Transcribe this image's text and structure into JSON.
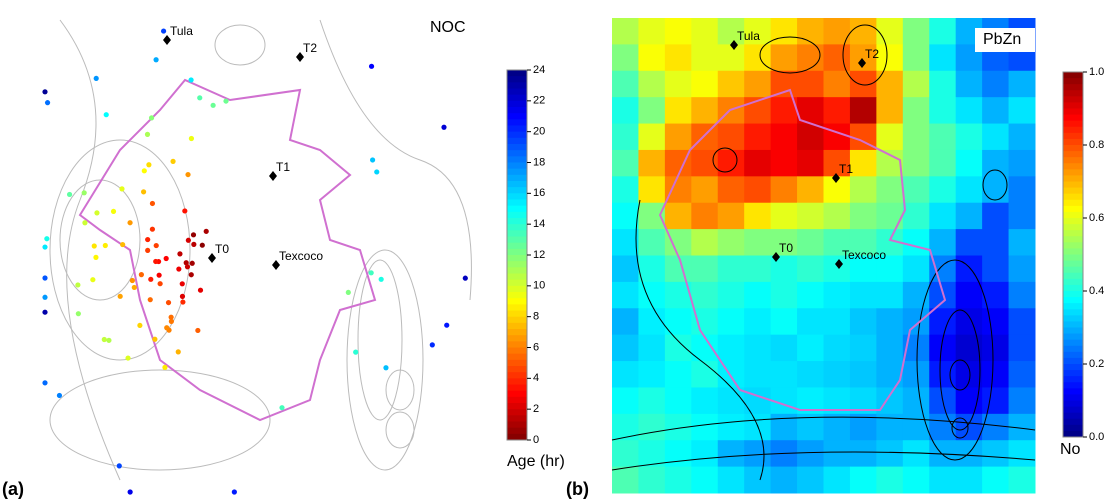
{
  "panels": [
    {
      "label": "(a)",
      "title": "NOC",
      "sites": [
        "Tula",
        "T2",
        "T1",
        "T0",
        "Texcoco"
      ],
      "colorbar": {
        "label": "Age (hr)",
        "lim": [
          0,
          24
        ],
        "ticks": [
          0,
          2,
          4,
          6,
          8,
          10,
          12,
          14,
          16,
          18,
          20,
          22,
          24
        ]
      },
      "ages": [
        0.5,
        1,
        1.2,
        1.5,
        2,
        2.2,
        2.5,
        3,
        3.2,
        3.5,
        1,
        0.8,
        2.8,
        3.8,
        4,
        4.2,
        4.5,
        5,
        5.2,
        5.5,
        6,
        6.2,
        6.5,
        7,
        7.2,
        7.5,
        8,
        8.2,
        8.5,
        9,
        9.2,
        9.5,
        10,
        10.2,
        10.5,
        11,
        11.5,
        12,
        12.5,
        13,
        4.8,
        5.8,
        6.8,
        7.8,
        8.8,
        9.8,
        10.8,
        11.8,
        12.8,
        13.5,
        14,
        14.5,
        15,
        15.5,
        16,
        16.5,
        17,
        17.5,
        18,
        18.5,
        19,
        19.5,
        20,
        20.5,
        21,
        21.5,
        22,
        22.5,
        23,
        23.5,
        6.4,
        7.4,
        8.4,
        9.4,
        10.4,
        11.4,
        12.4,
        13.4,
        14.4,
        15.4,
        16.4,
        17.4,
        18.4,
        19.4,
        20.4,
        1.8,
        2.6,
        3.4,
        4.4,
        5.4,
        0.3,
        1.4,
        2.4,
        3.6,
        4.6,
        5.6,
        6.6,
        7.6,
        8.6,
        9.6
      ]
    },
    {
      "label": "(b)",
      "title": "PbZn",
      "sites": [
        "Tula",
        "T2",
        "T1",
        "T0",
        "Texcoco"
      ],
      "colorbar": {
        "label": "No",
        "lim": [
          0,
          1
        ],
        "ticks": [
          {
            "value": 0,
            "label": "0.0"
          },
          0.2,
          0.4,
          0.6,
          0.8,
          {
            "value": 1,
            "label": "1.0"
          }
        ]
      },
      "grid": [
        [
          0.55,
          0.6,
          0.62,
          0.6,
          0.55,
          0.6,
          0.65,
          0.7,
          0.72,
          0.7,
          0.6,
          0.5,
          0.4,
          0.3,
          0.25,
          0.2
        ],
        [
          0.5,
          0.62,
          0.65,
          0.6,
          0.6,
          0.65,
          0.72,
          0.75,
          0.78,
          0.72,
          0.62,
          0.5,
          0.35,
          0.28,
          0.22,
          0.2
        ],
        [
          0.45,
          0.55,
          0.6,
          0.62,
          0.68,
          0.72,
          0.8,
          0.8,
          0.75,
          0.8,
          0.7,
          0.55,
          0.4,
          0.3,
          0.25,
          0.3
        ],
        [
          0.4,
          0.5,
          0.65,
          0.7,
          0.75,
          0.8,
          0.85,
          0.9,
          0.85,
          0.95,
          0.7,
          0.5,
          0.4,
          0.35,
          0.3,
          0.35
        ],
        [
          0.42,
          0.6,
          0.72,
          0.78,
          0.8,
          0.85,
          0.88,
          0.92,
          0.88,
          0.8,
          0.6,
          0.5,
          0.45,
          0.4,
          0.35,
          0.3
        ],
        [
          0.45,
          0.7,
          0.78,
          0.8,
          0.85,
          0.9,
          0.88,
          0.9,
          0.8,
          0.65,
          0.55,
          0.5,
          0.45,
          0.38,
          0.3,
          0.28
        ],
        [
          0.4,
          0.65,
          0.75,
          0.72,
          0.78,
          0.8,
          0.75,
          0.7,
          0.62,
          0.55,
          0.5,
          0.45,
          0.4,
          0.35,
          0.3,
          0.25
        ],
        [
          0.38,
          0.5,
          0.7,
          0.75,
          0.72,
          0.65,
          0.6,
          0.58,
          0.55,
          0.5,
          0.48,
          0.42,
          0.35,
          0.3,
          0.2,
          0.25
        ],
        [
          0.35,
          0.45,
          0.5,
          0.55,
          0.52,
          0.5,
          0.5,
          0.48,
          0.45,
          0.45,
          0.42,
          0.38,
          0.3,
          0.2,
          0.2,
          0.3
        ],
        [
          0.32,
          0.4,
          0.45,
          0.45,
          0.42,
          0.42,
          0.4,
          0.42,
          0.4,
          0.38,
          0.38,
          0.35,
          0.25,
          0.15,
          0.2,
          0.28
        ],
        [
          0.35,
          0.38,
          0.4,
          0.42,
          0.4,
          0.38,
          0.4,
          0.38,
          0.36,
          0.35,
          0.35,
          0.3,
          0.2,
          0.12,
          0.15,
          0.25
        ],
        [
          0.3,
          0.36,
          0.38,
          0.4,
          0.38,
          0.36,
          0.38,
          0.35,
          0.35,
          0.32,
          0.3,
          0.28,
          0.15,
          0.1,
          0.12,
          0.2
        ],
        [
          0.32,
          0.35,
          0.4,
          0.38,
          0.36,
          0.35,
          0.34,
          0.36,
          0.34,
          0.33,
          0.3,
          0.25,
          0.12,
          0.08,
          0.1,
          0.2
        ],
        [
          0.35,
          0.36,
          0.38,
          0.4,
          0.36,
          0.35,
          0.35,
          0.34,
          0.33,
          0.32,
          0.3,
          0.28,
          0.15,
          0.1,
          0.12,
          0.22
        ],
        [
          0.38,
          0.4,
          0.38,
          0.36,
          0.35,
          0.34,
          0.35,
          0.36,
          0.35,
          0.34,
          0.32,
          0.3,
          0.2,
          0.12,
          0.15,
          0.25
        ],
        [
          0.4,
          0.42,
          0.4,
          0.38,
          0.36,
          0.35,
          0.3,
          0.32,
          0.3,
          0.28,
          0.3,
          0.3,
          0.25,
          0.2,
          0.25,
          0.3
        ],
        [
          0.42,
          0.4,
          0.38,
          0.36,
          0.3,
          0.28,
          0.25,
          0.28,
          0.3,
          0.3,
          0.32,
          0.35,
          0.3,
          0.3,
          0.32,
          0.35
        ],
        [
          0.45,
          0.42,
          0.4,
          0.38,
          0.35,
          0.32,
          0.3,
          0.32,
          0.35,
          0.38,
          0.4,
          0.38,
          0.35,
          0.35,
          0.38,
          0.4
        ]
      ]
    }
  ]
}
